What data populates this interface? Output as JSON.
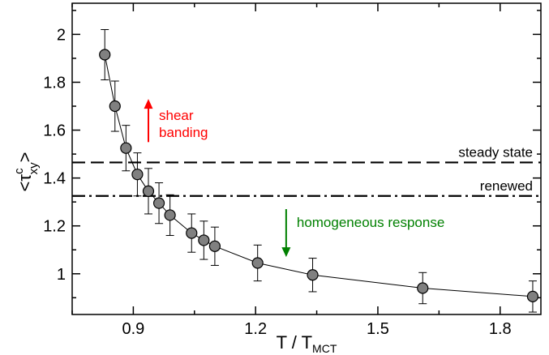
{
  "chart_data": {
    "type": "scatter",
    "xlabel": "T / T",
    "xlabel_sub": "MCT",
    "ylabel_parts": {
      "open": "<",
      "symbol": "τ",
      "sup": "c",
      "sub": "xy",
      "close": ">"
    },
    "xlim": [
      0.75,
      1.9
    ],
    "ylim": [
      0.83,
      2.13
    ],
    "xticks": [
      0.9,
      1.2,
      1.5,
      1.8
    ],
    "xtick_labels": [
      "0.9",
      "1.2",
      "1.5",
      "1.8"
    ],
    "yticks": [
      1,
      1.2,
      1.4,
      1.6,
      1.8,
      2
    ],
    "ytick_labels": [
      "1",
      "1.2",
      "1.4",
      "1.6",
      "1.8",
      "2"
    ],
    "grid": false,
    "series": [
      {
        "style": "line-markers-errorbars",
        "color": "#808080",
        "points": [
          {
            "x": 0.83,
            "y": 1.915,
            "err": 0.105
          },
          {
            "x": 0.855,
            "y": 1.7,
            "err": 0.105
          },
          {
            "x": 0.882,
            "y": 1.525,
            "err": 0.095
          },
          {
            "x": 0.91,
            "y": 1.415,
            "err": 0.09
          },
          {
            "x": 0.937,
            "y": 1.345,
            "err": 0.095
          },
          {
            "x": 0.963,
            "y": 1.295,
            "err": 0.085
          },
          {
            "x": 0.99,
            "y": 1.245,
            "err": 0.085
          },
          {
            "x": 1.043,
            "y": 1.17,
            "err": 0.08
          },
          {
            "x": 1.073,
            "y": 1.14,
            "err": 0.08
          },
          {
            "x": 1.1,
            "y": 1.115,
            "err": 0.08
          },
          {
            "x": 1.205,
            "y": 1.045,
            "err": 0.075
          },
          {
            "x": 1.34,
            "y": 0.995,
            "err": 0.07
          },
          {
            "x": 1.61,
            "y": 0.94,
            "err": 0.065
          },
          {
            "x": 1.88,
            "y": 0.905,
            "err": 0.065
          }
        ]
      }
    ],
    "reference_lines": [
      {
        "y": 1.465,
        "style": "dashed",
        "label": "steady state"
      },
      {
        "y": 1.325,
        "style": "dash-dot",
        "label": "renewed"
      }
    ],
    "annotations": [
      {
        "text_lines": [
          "shear",
          "banding"
        ],
        "color": "#ff0000",
        "arrow": "up",
        "x": 0.937,
        "y_from": 1.55,
        "y_to": 1.73
      },
      {
        "text_lines": [
          "homogeneous response"
        ],
        "color": "#008000",
        "arrow": "down",
        "x": 1.275,
        "y_from": 1.27,
        "y_to": 1.07
      }
    ]
  }
}
